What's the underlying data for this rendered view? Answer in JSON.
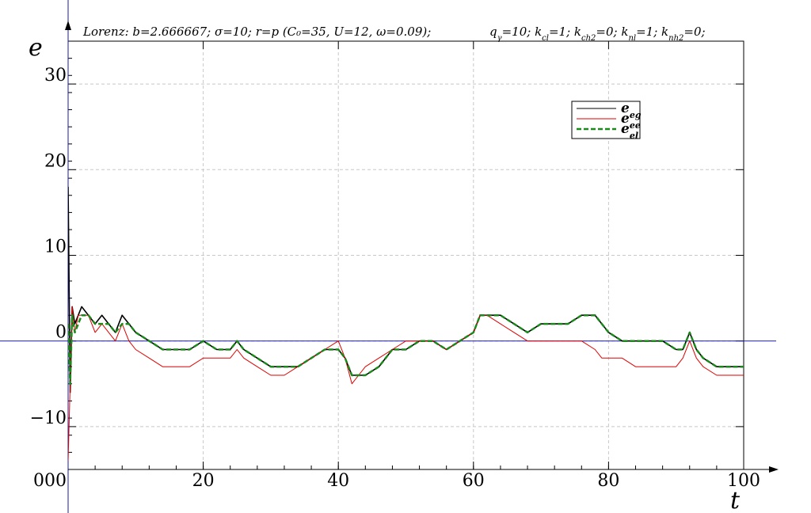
{
  "chart_data": {
    "type": "line",
    "title": {
      "left": "Lorenz: b=2.666667; σ=10; r=p (C₀=35, U=12, ω=0.09);",
      "right": "q_γ=10; k_cl=1; k_ch2=0; k_nl=1; k_nh2=0;"
    },
    "xlabel": "t",
    "ylabel": "e",
    "xlim": [
      0,
      100
    ],
    "ylim": [
      -15,
      35
    ],
    "x_ticks": [
      0,
      20,
      40,
      60,
      80,
      100
    ],
    "x_tick_labels": [
      "0",
      "20",
      "40",
      "60",
      "80",
      "100"
    ],
    "origin_overlap_label": "000",
    "y_ticks": [
      -10,
      0,
      10,
      20,
      30
    ],
    "y_tick_labels": [
      "−10",
      "0",
      "10",
      "20",
      "30"
    ],
    "grid": true,
    "legend_position": "top-right",
    "series": [
      {
        "name": "e_eg",
        "label_main": "e",
        "label_sub": "eg",
        "color": "#000000",
        "style": "solid",
        "x": [
          0,
          0.3,
          0.6,
          1,
          1.5,
          2,
          3,
          4,
          5,
          6,
          7,
          8,
          9,
          10,
          12,
          14,
          16,
          18,
          20,
          22,
          24,
          25,
          26,
          28,
          30,
          32,
          34,
          36,
          38,
          40,
          41,
          42,
          43,
          44,
          46,
          48,
          50,
          52,
          54,
          56,
          58,
          60,
          61,
          62,
          64,
          66,
          68,
          70,
          72,
          74,
          76,
          78,
          79,
          80,
          82,
          84,
          86,
          88,
          90,
          91,
          92,
          93,
          94,
          96,
          98,
          100
        ],
        "y": [
          18,
          -6,
          4,
          2,
          3,
          4,
          3,
          2,
          3,
          2,
          1,
          3,
          2,
          1,
          0,
          -1,
          -1,
          -1,
          0,
          -1,
          -1,
          0,
          -1,
          -2,
          -3,
          -3,
          -3,
          -2,
          -1,
          -1,
          -2,
          -4,
          -4,
          -4,
          -3,
          -1,
          -1,
          0,
          0,
          -1,
          0,
          1,
          3,
          3,
          3,
          2,
          1,
          2,
          2,
          2,
          3,
          3,
          2,
          1,
          0,
          0,
          0,
          0,
          -1,
          -1,
          1,
          -1,
          -2,
          -3,
          -3,
          -3
        ]
      },
      {
        "name": "e_ee",
        "label_main": "e",
        "label_sub": "ee",
        "color": "#e00000",
        "style": "solid",
        "x": [
          0,
          0.3,
          0.6,
          1,
          1.5,
          2,
          3,
          4,
          5,
          6,
          7,
          8,
          9,
          10,
          12,
          14,
          16,
          18,
          20,
          22,
          24,
          25,
          26,
          28,
          30,
          32,
          34,
          36,
          38,
          40,
          41,
          42,
          43,
          44,
          46,
          48,
          50,
          52,
          54,
          56,
          58,
          60,
          61,
          62,
          64,
          66,
          68,
          70,
          72,
          74,
          76,
          78,
          79,
          80,
          82,
          84,
          86,
          88,
          90,
          91,
          92,
          93,
          94,
          96,
          98,
          100
        ],
        "y": [
          -14,
          -5,
          4,
          1,
          3,
          3,
          3,
          1,
          2,
          1,
          0,
          2,
          0,
          -1,
          -2,
          -3,
          -3,
          -3,
          -2,
          -2,
          -2,
          -1,
          -2,
          -3,
          -4,
          -4,
          -3,
          -2,
          -1,
          0,
          -2,
          -5,
          -4,
          -3,
          -2,
          -1,
          0,
          0,
          0,
          -1,
          0,
          1,
          3,
          3,
          2,
          1,
          0,
          0,
          0,
          0,
          0,
          -1,
          -2,
          -2,
          -2,
          -3,
          -3,
          -3,
          -3,
          -2,
          0,
          -2,
          -3,
          -4,
          -4,
          -4
        ]
      },
      {
        "name": "e_el",
        "label_main": "e",
        "label_sub": "el",
        "color": "#1a8a1a",
        "style": "dashed",
        "x": [
          0,
          0.3,
          0.6,
          1,
          1.5,
          2,
          3,
          4,
          5,
          6,
          7,
          8,
          9,
          10,
          12,
          14,
          16,
          18,
          20,
          22,
          24,
          25,
          26,
          28,
          30,
          32,
          34,
          36,
          38,
          40,
          41,
          42,
          43,
          44,
          46,
          48,
          50,
          52,
          54,
          56,
          58,
          60,
          61,
          62,
          64,
          66,
          68,
          70,
          72,
          74,
          76,
          78,
          79,
          80,
          82,
          84,
          86,
          88,
          90,
          91,
          92,
          93,
          94,
          96,
          98,
          100
        ],
        "y": [
          2,
          -5,
          3,
          1,
          2,
          3,
          3,
          2,
          2,
          2,
          1,
          2,
          2,
          1,
          0,
          -1,
          -1,
          -1,
          0,
          -1,
          -1,
          0,
          -1,
          -2,
          -3,
          -3,
          -3,
          -2,
          -1,
          -1,
          -2,
          -4,
          -4,
          -4,
          -3,
          -1,
          -1,
          0,
          0,
          -1,
          0,
          1,
          3,
          3,
          3,
          2,
          1,
          2,
          2,
          2,
          3,
          3,
          2,
          1,
          0,
          0,
          0,
          0,
          -1,
          -1,
          1,
          -1,
          -2,
          -3,
          -3,
          -3
        ]
      }
    ]
  }
}
